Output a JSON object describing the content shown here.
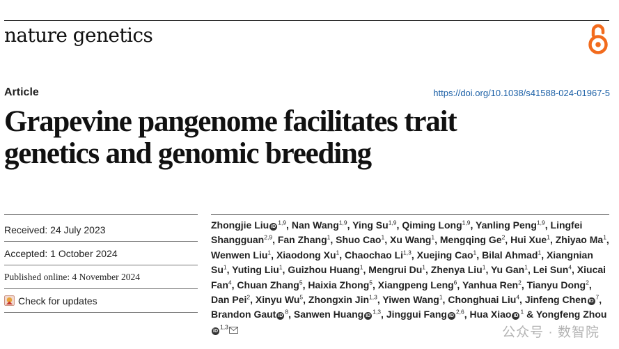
{
  "journal": {
    "name": "nature genetics"
  },
  "article": {
    "type": "Article",
    "doi": "https://doi.org/10.1038/s41588-024-01967-5",
    "title_line1": "Grapevine pangenome facilitates trait",
    "title_line2": "genetics and genomic breeding"
  },
  "meta": {
    "received": "Received: 24 July 2023",
    "accepted": "Accepted: 1 October 2024",
    "published": "Published online: 4 November 2024",
    "check_updates": "Check for updates"
  },
  "authors": [
    {
      "name": "Zhongjie Liu",
      "orcid": true,
      "sup": "1,9"
    },
    {
      "name": "Nan Wang",
      "sup": "1,9"
    },
    {
      "name": "Ying Su",
      "sup": "1,9"
    },
    {
      "name": "Qiming Long",
      "sup": "1,9"
    },
    {
      "name": "Yanling Peng",
      "sup": "1,9"
    },
    {
      "name": "Lingfei Shangguan",
      "sup": "2,9"
    },
    {
      "name": "Fan Zhang",
      "sup": "1"
    },
    {
      "name": "Shuo Cao",
      "sup": "1"
    },
    {
      "name": "Xu Wang",
      "sup": "1"
    },
    {
      "name": "Mengqing Ge",
      "sup": "2"
    },
    {
      "name": "Hui Xue",
      "sup": "1"
    },
    {
      "name": "Zhiyao Ma",
      "sup": "1"
    },
    {
      "name": "Wenwen Liu",
      "sup": "1"
    },
    {
      "name": "Xiaodong Xu",
      "sup": "1"
    },
    {
      "name": "Chaochao Li",
      "sup": "1,3"
    },
    {
      "name": "Xuejing Cao",
      "sup": "1"
    },
    {
      "name": "Bilal Ahmad",
      "sup": "1"
    },
    {
      "name": "Xiangnian Su",
      "sup": "1"
    },
    {
      "name": "Yuting Liu",
      "sup": "1"
    },
    {
      "name": "Guizhou Huang",
      "sup": "1"
    },
    {
      "name": "Mengrui Du",
      "sup": "1"
    },
    {
      "name": "Zhenya Liu",
      "sup": "1"
    },
    {
      "name": "Yu Gan",
      "sup": "1"
    },
    {
      "name": "Lei Sun",
      "sup": "4"
    },
    {
      "name": "Xiucai Fan",
      "sup": "4"
    },
    {
      "name": "Chuan Zhang",
      "sup": "5"
    },
    {
      "name": "Haixia Zhong",
      "sup": "5"
    },
    {
      "name": "Xiangpeng Leng",
      "sup": "6"
    },
    {
      "name": "Yanhua Ren",
      "sup": "2"
    },
    {
      "name": "Tianyu Dong",
      "sup": "2"
    },
    {
      "name": "Dan Pei",
      "sup": "2"
    },
    {
      "name": "Xinyu Wu",
      "sup": "5"
    },
    {
      "name": "Zhongxin Jin",
      "sup": "1,3"
    },
    {
      "name": "Yiwen Wang",
      "sup": "1"
    },
    {
      "name": "Chonghuai Liu",
      "sup": "4"
    },
    {
      "name": "Jinfeng Chen",
      "orcid": true,
      "sup": "7"
    },
    {
      "name": "Brandon Gaut",
      "orcid": true,
      "sup": "8"
    },
    {
      "name": "Sanwen Huang",
      "orcid": true,
      "sup": "1,3"
    },
    {
      "name": "Jinggui Fang",
      "orcid": true,
      "sup": "2,6"
    },
    {
      "name": "Hua Xiao",
      "orcid": true,
      "sup": "1"
    },
    {
      "name": "Yongfeng Zhou",
      "orcid": true,
      "sup": "1,3",
      "corresponding": true
    }
  ],
  "separators": {
    "comma": ", ",
    "and": " & "
  },
  "watermark": "公众号 · 数智院",
  "colors": {
    "doi_link": "#1a5fa6",
    "oa_orange": "#f26b1d"
  }
}
